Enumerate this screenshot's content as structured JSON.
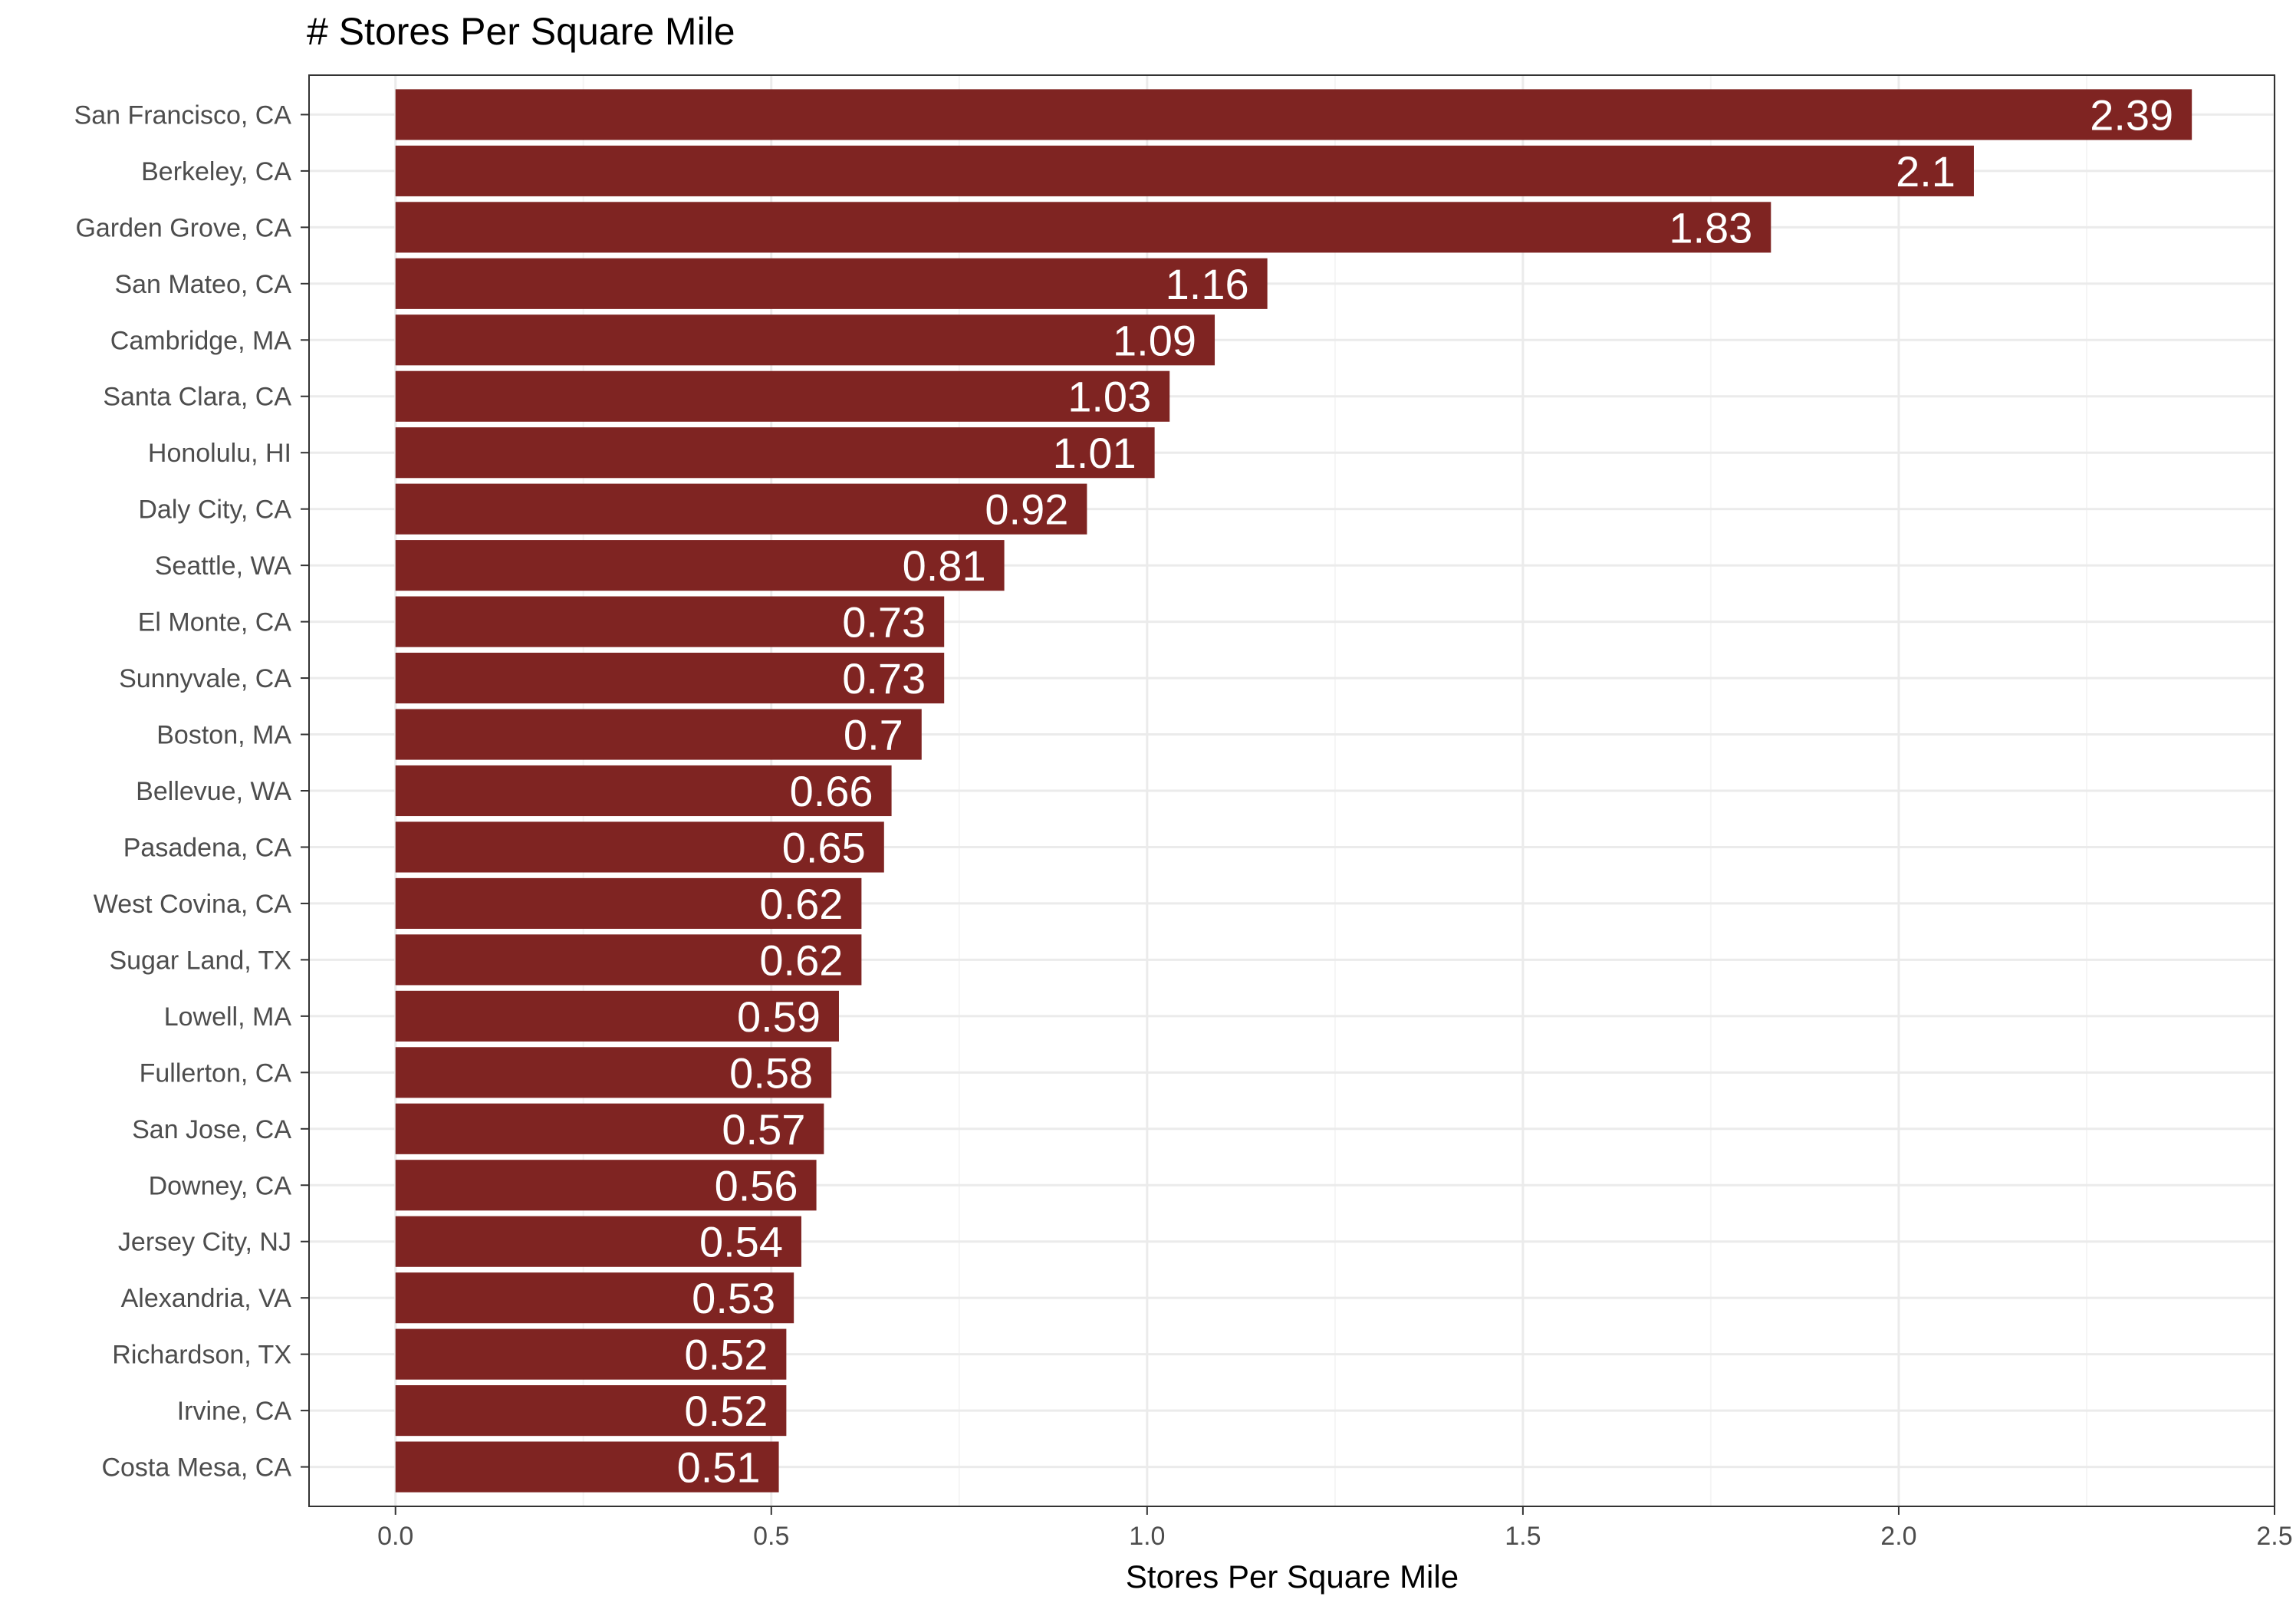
{
  "chart_data": {
    "type": "bar",
    "orientation": "horizontal",
    "title": "# Stores Per Square Mile",
    "xlabel": "Stores Per Square Mile",
    "ylabel": "",
    "categories": [
      "San Francisco, CA",
      "Berkeley, CA",
      "Garden Grove, CA",
      "San Mateo, CA",
      "Cambridge, MA",
      "Santa Clara, CA",
      "Honolulu, HI",
      "Daly City, CA",
      "Seattle, WA",
      "El Monte, CA",
      "Sunnyvale, CA",
      "Boston, MA",
      "Bellevue, WA",
      "Pasadena, CA",
      "West Covina, CA",
      "Sugar Land, TX",
      "Lowell, MA",
      "Fullerton, CA",
      "San Jose, CA",
      "Downey, CA",
      "Jersey City, NJ",
      "Alexandria, VA",
      "Richardson, TX",
      "Irvine, CA",
      "Costa Mesa, CA"
    ],
    "values": [
      2.39,
      2.1,
      1.83,
      1.16,
      1.09,
      1.03,
      1.01,
      0.92,
      0.81,
      0.73,
      0.73,
      0.7,
      0.66,
      0.65,
      0.62,
      0.62,
      0.59,
      0.58,
      0.57,
      0.56,
      0.54,
      0.53,
      0.52,
      0.52,
      0.51
    ],
    "data_labels": [
      "2.39",
      "2.1",
      "1.83",
      "1.16",
      "1.09",
      "1.03",
      "1.01",
      "0.92",
      "0.81",
      "0.73",
      "0.73",
      "0.7",
      "0.66",
      "0.65",
      "0.62",
      "0.62",
      "0.59",
      "0.58",
      "0.57",
      "0.56",
      "0.54",
      "0.53",
      "0.52",
      "0.52",
      "0.51"
    ],
    "xlim": [
      -0.115,
      2.5
    ],
    "xticks": [
      0.0,
      0.5,
      1.0,
      1.5,
      2.0,
      2.5
    ],
    "xtick_labels": [
      "0.0",
      "0.5",
      "1.0",
      "1.5",
      "2.0",
      "2.5"
    ],
    "grid": true,
    "legend": "none",
    "colors": {
      "bar": "#7f2422",
      "grid_major": "#ebebeb",
      "grid_minor": "#f5f5f5",
      "panel_border": "#333333",
      "axis_text": "#4d4d4d",
      "data_label": "#ffffff"
    }
  }
}
